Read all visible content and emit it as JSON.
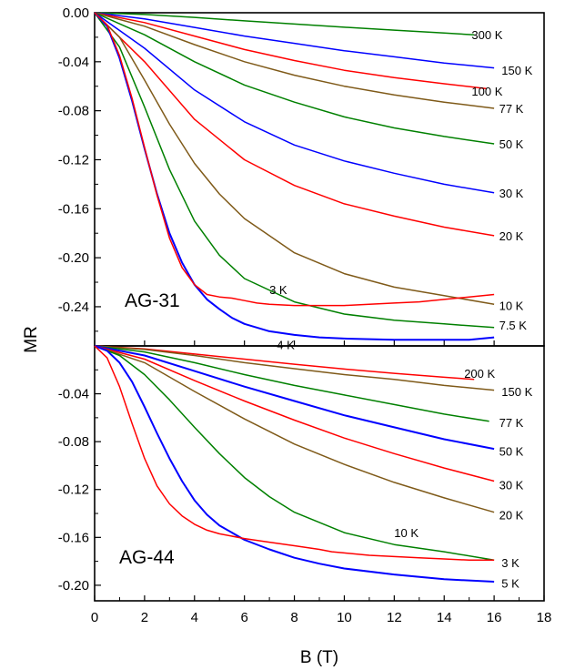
{
  "chart_data": {
    "type": "line",
    "xlabel": "B (T)",
    "ylabel": "MR",
    "xlim": [
      0,
      18
    ],
    "x_ticks": [
      0,
      2,
      4,
      6,
      8,
      10,
      12,
      14,
      16,
      18
    ],
    "x_tick_labels": [
      "0",
      "2",
      "4",
      "6",
      "8",
      "10",
      "12",
      "14",
      "16",
      "18"
    ],
    "colors": {
      "blue": "#0000ff",
      "red": "#ff0000",
      "green": "#008000",
      "brown": "#7f5a19"
    },
    "panels": [
      {
        "label": "AG-31",
        "ylim": [
          -0.272,
          0.0
        ],
        "y_ticks": [
          0.0,
          -0.04,
          -0.08,
          -0.12,
          -0.16,
          -0.2,
          -0.24
        ],
        "y_tick_labels": [
          "0.00",
          "-0.04",
          "-0.08",
          "-0.12",
          "-0.16",
          "-0.20",
          "-0.24"
        ],
        "series": [
          {
            "name": "300 K",
            "color": "#008000",
            "x": [
              0,
              2,
              4,
              6,
              8,
              10,
              12,
              14,
              15.2
            ],
            "y": [
              0,
              -0.0014,
              -0.0038,
              -0.0066,
              -0.0092,
              -0.0118,
              -0.0142,
              -0.0166,
              -0.018
            ]
          },
          {
            "name": "150 K",
            "color": "#0000ff",
            "x": [
              0,
              2,
              4,
              6,
              8,
              10,
              12,
              14,
              16
            ],
            "y": [
              0,
              -0.005,
              -0.012,
              -0.019,
              -0.025,
              -0.031,
              -0.036,
              -0.041,
              -0.045
            ]
          },
          {
            "name": "100 K",
            "color": "#ff0000",
            "x": [
              0,
              2,
              4,
              6,
              8,
              10,
              12,
              14,
              15.7
            ],
            "y": [
              0,
              -0.008,
              -0.019,
              -0.03,
              -0.039,
              -0.047,
              -0.053,
              -0.058,
              -0.062
            ]
          },
          {
            "name": "77 K",
            "color": "#7f5a19",
            "x": [
              0,
              2,
              4,
              6,
              8,
              10,
              12,
              14,
              16
            ],
            "y": [
              0,
              -0.011,
              -0.026,
              -0.04,
              -0.051,
              -0.06,
              -0.067,
              -0.073,
              -0.078
            ]
          },
          {
            "name": "50 K",
            "color": "#008000",
            "x": [
              0,
              2,
              4,
              6,
              8,
              10,
              12,
              14,
              16
            ],
            "y": [
              0,
              -0.018,
              -0.04,
              -0.059,
              -0.073,
              -0.085,
              -0.094,
              -0.101,
              -0.107
            ]
          },
          {
            "name": "30 K",
            "color": "#0000ff",
            "x": [
              0,
              2,
              4,
              6,
              8,
              10,
              12,
              14,
              16
            ],
            "y": [
              0,
              -0.029,
              -0.063,
              -0.089,
              -0.108,
              -0.121,
              -0.131,
              -0.14,
              -0.147
            ]
          },
          {
            "name": "20 K",
            "color": "#ff0000",
            "x": [
              0,
              2,
              4,
              6,
              8,
              10,
              12,
              14,
              16
            ],
            "y": [
              0,
              -0.04,
              -0.087,
              -0.12,
              -0.141,
              -0.156,
              -0.166,
              -0.175,
              -0.182
            ]
          },
          {
            "name": "10 K",
            "color": "#7f5a19",
            "x": [
              0,
              1,
              2,
              3,
              4,
              5,
              6,
              8,
              10,
              12,
              14,
              16
            ],
            "y": [
              0,
              -0.02,
              -0.055,
              -0.091,
              -0.123,
              -0.148,
              -0.168,
              -0.196,
              -0.213,
              -0.224,
              -0.231,
              -0.238
            ]
          },
          {
            "name": "7.5 K",
            "color": "#008000",
            "x": [
              0,
              1,
              2,
              3,
              4,
              5,
              6,
              8,
              10,
              12,
              14,
              16
            ],
            "y": [
              0,
              -0.028,
              -0.077,
              -0.128,
              -0.17,
              -0.198,
              -0.217,
              -0.236,
              -0.246,
              -0.251,
              -0.254,
              -0.257
            ]
          },
          {
            "name": "4 K",
            "color": "#0000ff",
            "x": [
              0,
              0.5,
              1,
              1.5,
              2,
              2.5,
              3,
              3.5,
              4,
              4.5,
              5,
              5.5,
              6,
              7,
              8,
              9,
              10,
              12,
              14,
              15,
              16
            ],
            "y": [
              0,
              -0.011,
              -0.037,
              -0.072,
              -0.111,
              -0.148,
              -0.18,
              -0.204,
              -0.222,
              -0.234,
              -0.242,
              -0.249,
              -0.254,
              -0.26,
              -0.263,
              -0.265,
              -0.266,
              -0.267,
              -0.267,
              -0.267,
              -0.265
            ]
          },
          {
            "name": "3 K",
            "color": "#ff0000",
            "x": [
              0,
              0.5,
              1,
              1.5,
              2,
              2.5,
              3,
              3.5,
              4,
              4.5,
              5,
              5.5,
              6,
              6.5,
              7,
              8,
              9,
              10,
              11,
              12,
              13,
              14,
              15,
              16
            ],
            "y": [
              0,
              -0.01,
              -0.035,
              -0.07,
              -0.11,
              -0.149,
              -0.184,
              -0.208,
              -0.222,
              -0.23,
              -0.232,
              -0.233,
              -0.235,
              -0.237,
              -0.238,
              -0.239,
              -0.239,
              -0.239,
              -0.238,
              -0.237,
              -0.236,
              -0.234,
              -0.232,
              -0.23
            ]
          }
        ],
        "curve_labels": [
          {
            "text": "300 K",
            "x": 15.1,
            "y": -0.018
          },
          {
            "text": "150 K",
            "x": 16.3,
            "y": -0.047
          },
          {
            "text": "100 K",
            "x": 15.1,
            "y": -0.064
          },
          {
            "text": "77 K",
            "x": 16.2,
            "y": -0.078
          },
          {
            "text": "50 K",
            "x": 16.2,
            "y": -0.107
          },
          {
            "text": "30 K",
            "x": 16.2,
            "y": -0.147
          },
          {
            "text": "20 K",
            "x": 16.2,
            "y": -0.182
          },
          {
            "text": "10 K",
            "x": 16.2,
            "y": -0.239
          },
          {
            "text": "7.5 K",
            "x": 16.2,
            "y": -0.255
          },
          {
            "text": "4 K",
            "x": 7.3,
            "y": -0.271
          },
          {
            "text": "3 K",
            "x": 7.0,
            "y": -0.226
          }
        ]
      },
      {
        "label": "AG-44",
        "ylim": [
          -0.213,
          0.0
        ],
        "y_ticks": [
          -0.04,
          -0.08,
          -0.12,
          -0.16,
          -0.2
        ],
        "y_tick_labels": [
          "-0.04",
          "-0.08",
          "-0.12",
          "-0.16",
          "-0.20"
        ],
        "series": [
          {
            "name": "200 K",
            "color": "#ff0000",
            "x": [
              0,
              2,
              4,
              6,
              8,
              10,
              12,
              14,
              15.2
            ],
            "y": [
              0,
              -0.0025,
              -0.0068,
              -0.011,
              -0.0153,
              -0.0193,
              -0.0229,
              -0.0262,
              -0.028
            ]
          },
          {
            "name": "150 K",
            "color": "#7f5a19",
            "x": [
              0,
              2,
              4,
              6,
              8,
              10,
              12,
              14,
              16
            ],
            "y": [
              0,
              -0.003,
              -0.008,
              -0.014,
              -0.019,
              -0.024,
              -0.028,
              -0.033,
              -0.037
            ]
          },
          {
            "name": "77 K",
            "color": "#008000",
            "x": [
              0,
              2,
              4,
              6,
              8,
              10,
              12,
              14,
              15.8
            ],
            "y": [
              0,
              -0.005,
              -0.014,
              -0.024,
              -0.033,
              -0.041,
              -0.049,
              -0.057,
              -0.063
            ]
          },
          {
            "name": "50 K",
            "color": "#0000ff",
            "x": [
              0,
              2,
              4,
              6,
              8,
              10,
              12,
              14,
              16
            ],
            "y": [
              0,
              -0.008,
              -0.021,
              -0.034,
              -0.046,
              -0.058,
              -0.068,
              -0.078,
              -0.086
            ]
          },
          {
            "name": "30 K",
            "color": "#ff0000",
            "x": [
              0,
              2,
              4,
              6,
              8,
              10,
              12,
              14,
              16
            ],
            "y": [
              0,
              -0.011,
              -0.029,
              -0.046,
              -0.062,
              -0.077,
              -0.09,
              -0.102,
              -0.113
            ]
          },
          {
            "name": "20 K",
            "color": "#7f5a19",
            "x": [
              0,
              2,
              4,
              6,
              8,
              10,
              12,
              14,
              16
            ],
            "y": [
              0,
              -0.014,
              -0.038,
              -0.061,
              -0.082,
              -0.099,
              -0.114,
              -0.127,
              -0.139
            ]
          },
          {
            "name": "10 K",
            "color": "#008000",
            "x": [
              0,
              1,
              2,
              3,
              4,
              5,
              6,
              7,
              8,
              10,
              12,
              14,
              16
            ],
            "y": [
              0,
              -0.008,
              -0.024,
              -0.045,
              -0.068,
              -0.09,
              -0.11,
              -0.126,
              -0.139,
              -0.156,
              -0.166,
              -0.172,
              -0.179
            ]
          },
          {
            "name": "5 K",
            "color": "#0000ff",
            "x": [
              0,
              0.5,
              1,
              1.5,
              2,
              2.5,
              3,
              3.5,
              4,
              4.5,
              5,
              6,
              7,
              8,
              9,
              10,
              12,
              14,
              16
            ],
            "y": [
              0,
              -0.004,
              -0.014,
              -0.03,
              -0.051,
              -0.073,
              -0.094,
              -0.113,
              -0.129,
              -0.141,
              -0.15,
              -0.162,
              -0.17,
              -0.177,
              -0.182,
              -0.186,
              -0.191,
              -0.195,
              -0.197
            ]
          },
          {
            "name": "3 K",
            "color": "#ff0000",
            "x": [
              0,
              0.5,
              1,
              1.5,
              2,
              2.5,
              3,
              3.5,
              4,
              4.5,
              5,
              6,
              7,
              8,
              9,
              9.5,
              10,
              11,
              12,
              13,
              14,
              15,
              16
            ],
            "y": [
              0,
              -0.01,
              -0.034,
              -0.065,
              -0.094,
              -0.117,
              -0.132,
              -0.142,
              -0.149,
              -0.154,
              -0.157,
              -0.161,
              -0.164,
              -0.167,
              -0.17,
              -0.172,
              -0.173,
              -0.175,
              -0.176,
              -0.177,
              -0.178,
              -0.179,
              -0.179
            ]
          }
        ],
        "curve_labels": [
          {
            "text": "200 K",
            "x": 14.8,
            "y": -0.023
          },
          {
            "text": "150 K",
            "x": 16.3,
            "y": -0.038
          },
          {
            "text": "77 K",
            "x": 16.2,
            "y": -0.064
          },
          {
            "text": "50 K",
            "x": 16.2,
            "y": -0.088
          },
          {
            "text": "30 K",
            "x": 16.2,
            "y": -0.116
          },
          {
            "text": "20 K",
            "x": 16.2,
            "y": -0.141
          },
          {
            "text": "10 K",
            "x": 12.0,
            "y": -0.156
          },
          {
            "text": "3 K",
            "x": 16.3,
            "y": -0.181
          },
          {
            "text": "5 K",
            "x": 16.3,
            "y": -0.198
          }
        ]
      }
    ]
  }
}
